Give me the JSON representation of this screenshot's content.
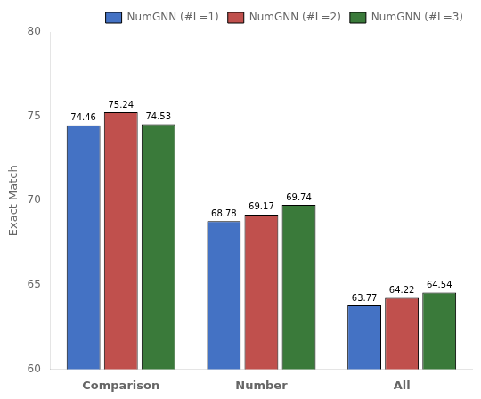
{
  "chart_data": {
    "type": "bar",
    "categories": [
      "Comparison",
      "Number",
      "All"
    ],
    "series": [
      {
        "name": "NumGNN (#L=1)",
        "values": [
          74.46,
          68.78,
          63.77
        ],
        "color": "#4472C4"
      },
      {
        "name": "NumGNN (#L=2)",
        "values": [
          75.24,
          69.17,
          64.22
        ],
        "color": "#C0504D"
      },
      {
        "name": "NumGNN (#L=3)",
        "values": [
          74.53,
          69.74,
          64.54
        ],
        "color": "#3A7A3A"
      }
    ],
    "ylabel": "Exact Match",
    "ylim": [
      60,
      80
    ],
    "yticks": [
      60,
      65,
      70,
      75,
      80
    ],
    "grid": false,
    "legend": "upper right",
    "data_labels": true
  }
}
